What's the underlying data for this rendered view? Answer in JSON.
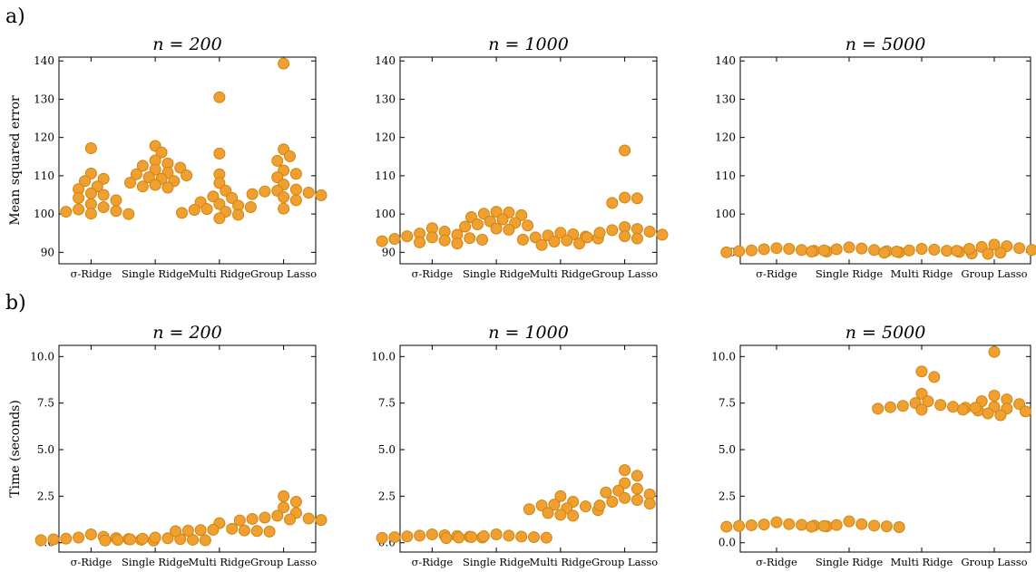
{
  "figure": {
    "row_labels": [
      "a)",
      "b)"
    ],
    "categories": [
      "σ-Ridge",
      "Single Ridge",
      "Multi Ridge",
      "Group Lasso"
    ],
    "marker_color": "#f0a030",
    "marker_edge_color": "#d08410"
  },
  "chart_data": [
    {
      "type": "scatter",
      "row": "a",
      "title": "n = 200",
      "xlabel": "",
      "ylabel": "Mean squared error",
      "categories": [
        "σ-Ridge",
        "Single Ridge",
        "Multi Ridge",
        "Group Lasso"
      ],
      "ylim": [
        87,
        141
      ],
      "yticks": [
        90,
        100,
        110,
        120,
        130,
        140
      ],
      "grid": false,
      "values": [
        [
          117.2,
          110.6,
          109.2,
          108.6,
          107.2,
          106.5,
          105.4,
          105.0,
          104.2,
          103.6,
          102.6,
          101.8,
          101.2,
          100.8,
          100.6,
          100.1,
          100.0
        ],
        [
          117.8,
          116.1,
          114.0,
          113.2,
          112.6,
          112.1,
          111.6,
          110.8,
          110.4,
          110.1,
          109.6,
          109.2,
          108.6,
          108.2,
          107.6,
          107.2,
          106.9
        ],
        [
          130.5,
          115.8,
          110.4,
          108.1,
          106.1,
          104.6,
          104.2,
          103.1,
          102.6,
          102.2,
          101.8,
          101.3,
          101.1,
          100.6,
          100.3,
          99.8,
          98.9
        ],
        [
          139.3,
          116.9,
          115.1,
          113.9,
          111.4,
          110.5,
          109.6,
          107.7,
          106.4,
          106.1,
          105.9,
          105.6,
          105.2,
          104.9,
          104.4,
          103.6,
          101.4
        ]
      ]
    },
    {
      "type": "scatter",
      "row": "a",
      "title": "n = 1000",
      "xlabel": "",
      "ylabel": "",
      "categories": [
        "σ-Ridge",
        "Single Ridge",
        "Multi Ridge",
        "Group Lasso"
      ],
      "ylim": [
        87,
        141
      ],
      "yticks": [
        90,
        100,
        110,
        120,
        130,
        140
      ],
      "grid": false,
      "values": [
        [
          96.3,
          95.4,
          94.9,
          94.6,
          94.2,
          93.9,
          93.7,
          93.5,
          93.3,
          93.1,
          92.9,
          92.6,
          92.3
        ],
        [
          100.6,
          100.4,
          100.1,
          99.7,
          99.2,
          98.6,
          98.1,
          97.7,
          97.3,
          97.0,
          96.7,
          96.2,
          95.9
        ],
        [
          95.1,
          94.7,
          94.4,
          94.1,
          93.9,
          93.6,
          93.3,
          93.1,
          92.8,
          92.3,
          91.9
        ],
        [
          116.6,
          104.3,
          104.1,
          102.9,
          96.6,
          96.1,
          95.8,
          95.4,
          95.1,
          94.6,
          94.2,
          93.9,
          93.6
        ]
      ]
    },
    {
      "type": "scatter",
      "row": "a",
      "title": "n = 5000",
      "xlabel": "",
      "ylabel": "",
      "categories": [
        "σ-Ridge",
        "Single Ridge",
        "Multi Ridge",
        "Group Lasso"
      ],
      "ylim": [
        87,
        141
      ],
      "yticks": [
        90,
        100,
        110,
        120,
        130,
        140
      ],
      "grid": false,
      "values": [
        [
          91.1,
          90.9,
          90.8,
          90.6,
          90.5,
          90.4,
          90.3,
          90.2,
          90.0
        ],
        [
          91.3,
          91.0,
          90.8,
          90.6,
          90.5,
          90.3,
          90.2,
          90.0
        ],
        [
          90.9,
          90.7,
          90.5,
          90.4,
          90.2,
          90.1,
          89.9,
          89.7
        ],
        [
          92.0,
          91.6,
          91.4,
          91.1,
          90.9,
          90.6,
          90.4,
          90.2,
          89.9,
          89.6
        ]
      ]
    },
    {
      "type": "scatter",
      "row": "b",
      "title": "n = 200",
      "xlabel": "",
      "ylabel": "Time (seconds)",
      "categories": [
        "σ-Ridge",
        "Single Ridge",
        "Multi Ridge",
        "Group Lasso"
      ],
      "ylim": [
        -0.5,
        10.6
      ],
      "yticks": [
        0.0,
        2.5,
        5.0,
        7.5,
        10.0
      ],
      "grid": false,
      "values": [
        [
          0.45,
          0.32,
          0.28,
          0.25,
          0.22,
          0.2,
          0.18,
          0.16,
          0.14,
          0.12
        ],
        [
          0.28,
          0.24,
          0.22,
          0.2,
          0.18,
          0.16,
          0.15,
          0.13,
          0.12
        ],
        [
          1.05,
          0.75,
          0.7,
          0.68,
          0.66,
          0.65,
          0.63,
          0.62,
          0.6
        ],
        [
          2.5,
          2.2,
          1.9,
          1.6,
          1.45,
          1.35,
          1.3,
          1.28,
          1.25,
          1.22,
          1.2
        ]
      ]
    },
    {
      "type": "scatter",
      "row": "b",
      "title": "n = 1000",
      "xlabel": "",
      "ylabel": "",
      "categories": [
        "σ-Ridge",
        "Single Ridge",
        "Multi Ridge",
        "Group Lasso"
      ],
      "ylim": [
        -0.5,
        10.6
      ],
      "yticks": [
        0.0,
        2.5,
        5.0,
        7.5,
        10.0
      ],
      "grid": false,
      "values": [
        [
          0.45,
          0.4,
          0.38,
          0.36,
          0.34,
          0.32,
          0.3,
          0.28,
          0.26
        ],
        [
          0.45,
          0.38,
          0.35,
          0.33,
          0.31,
          0.3,
          0.28,
          0.27,
          0.25
        ],
        [
          2.5,
          2.2,
          2.05,
          2.0,
          1.95,
          1.85,
          1.8,
          1.75,
          1.6,
          1.5,
          1.45
        ],
        [
          3.9,
          3.6,
          3.2,
          2.9,
          2.8,
          2.7,
          2.6,
          2.4,
          2.3,
          2.2,
          2.1,
          2.0
        ]
      ]
    },
    {
      "type": "scatter",
      "row": "b",
      "title": "n = 5000",
      "xlabel": "",
      "ylabel": "",
      "categories": [
        "σ-Ridge",
        "Single Ridge",
        "Multi Ridge",
        "Group Lasso"
      ],
      "ylim": [
        -0.5,
        10.6
      ],
      "yticks": [
        0.0,
        2.5,
        5.0,
        7.5,
        10.0
      ],
      "grid": false,
      "values": [
        [
          1.1,
          1.0,
          0.98,
          0.96,
          0.94,
          0.92,
          0.9,
          0.88,
          0.86
        ],
        [
          1.15,
          1.0,
          0.95,
          0.92,
          0.9,
          0.88,
          0.86,
          0.84
        ],
        [
          9.2,
          8.9,
          8.0,
          7.6,
          7.5,
          7.4,
          7.35,
          7.3,
          7.28,
          7.25,
          7.2,
          7.15,
          7.1
        ],
        [
          10.25,
          7.9,
          7.7,
          7.6,
          7.45,
          7.3,
          7.25,
          7.2,
          7.15,
          7.05,
          6.95,
          6.85
        ]
      ]
    }
  ]
}
